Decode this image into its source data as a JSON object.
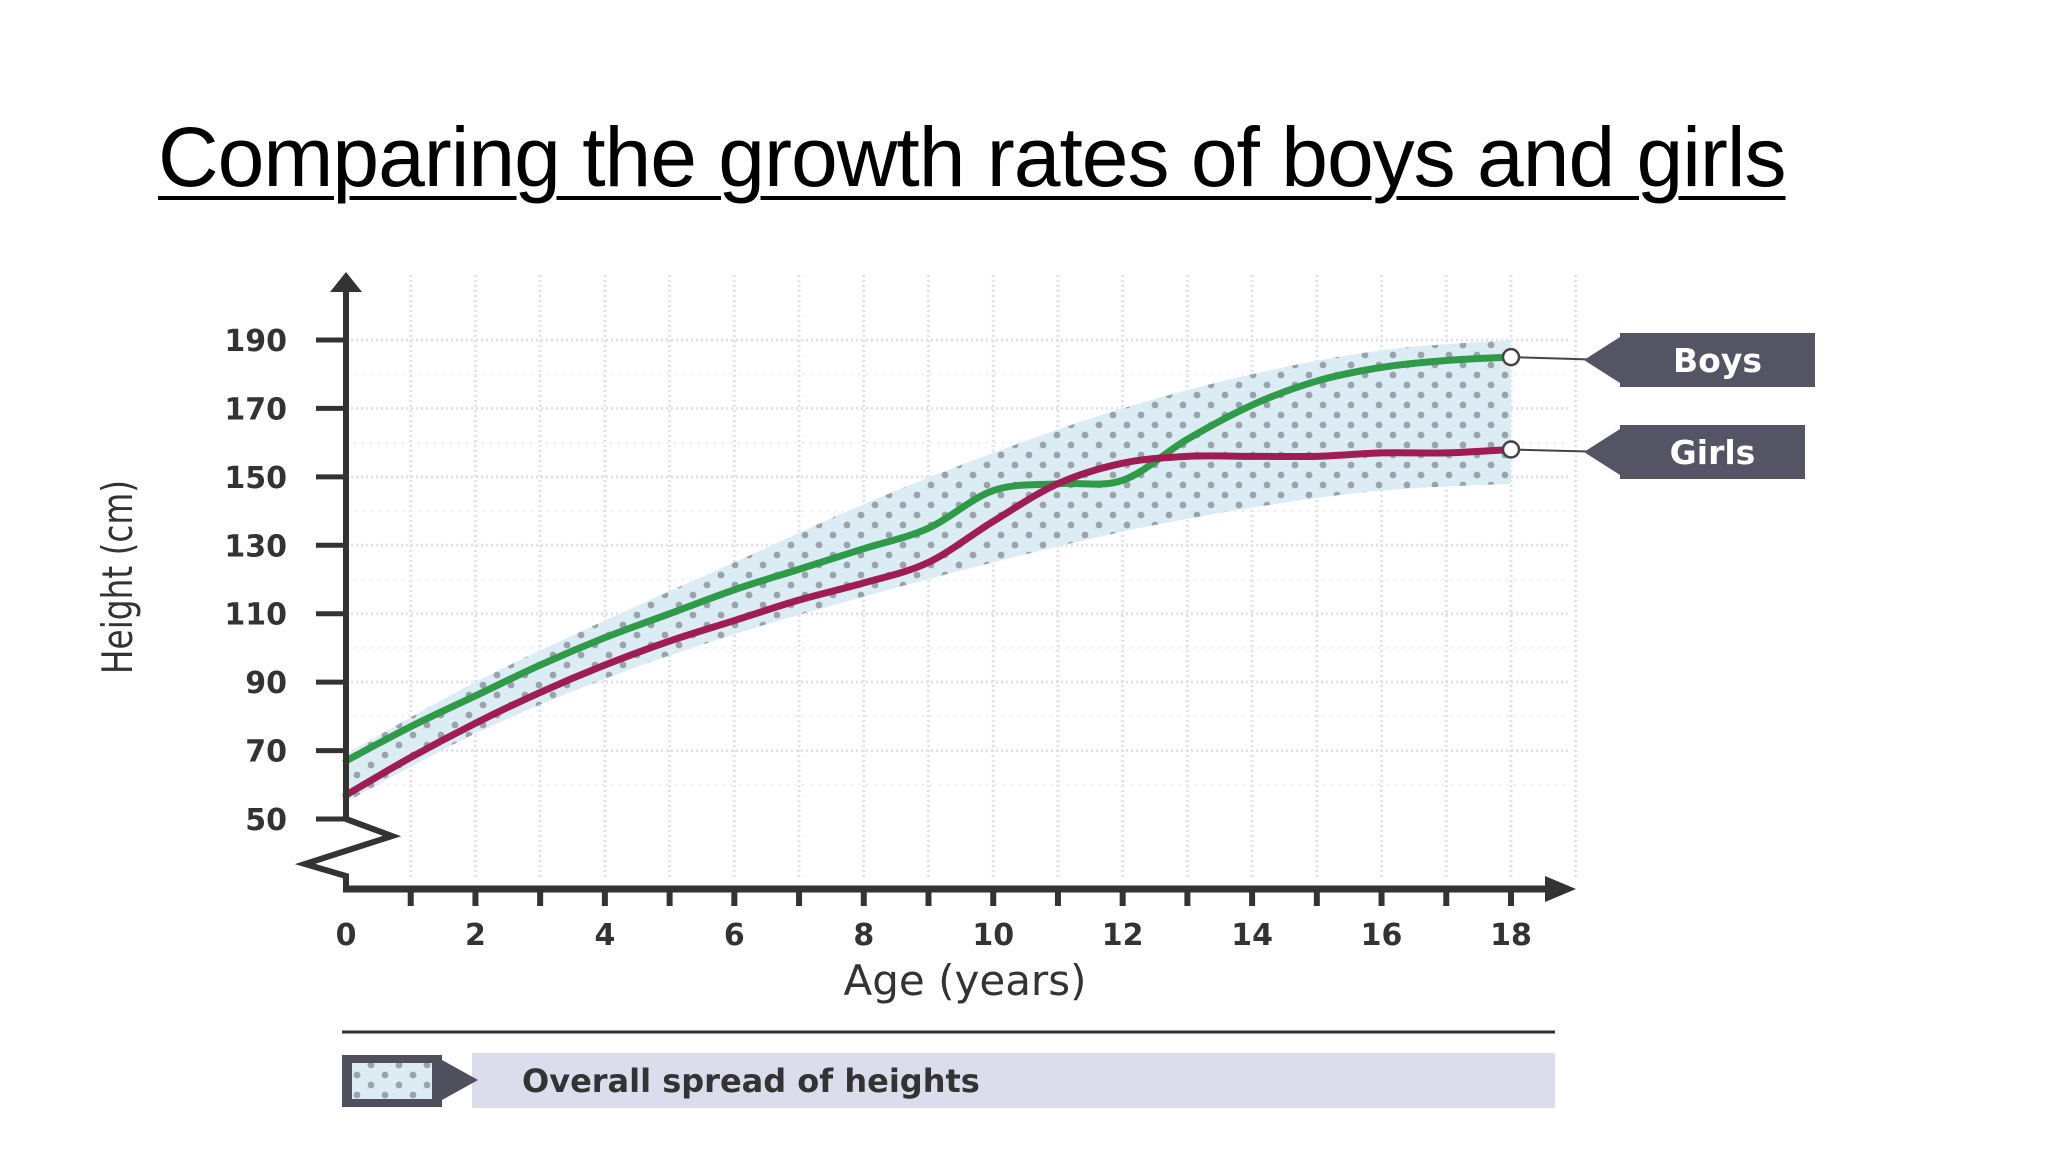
{
  "title": "Comparing the growth rates of boys and girls",
  "chart_data": {
    "type": "line",
    "xlabel": "Age (years)",
    "ylabel": "Height (cm)",
    "xlim": [
      0,
      18
    ],
    "ylim": [
      50,
      190
    ],
    "xticks": [
      "0",
      "2",
      "4",
      "6",
      "8",
      "10",
      "12",
      "14",
      "16",
      "18"
    ],
    "yticks": [
      "50",
      "70",
      "90",
      "110",
      "130",
      "150",
      "170",
      "190"
    ],
    "grid": true,
    "y_axis_break": true,
    "series": [
      {
        "name": "Boys",
        "color": "#2f9a47",
        "x": [
          0,
          1,
          2,
          3,
          4,
          5,
          6,
          7,
          8,
          9,
          10,
          11,
          12,
          13,
          14,
          15,
          16,
          17,
          18
        ],
        "y": [
          67,
          77,
          86,
          95,
          103,
          110,
          117,
          123,
          129,
          135,
          146,
          148,
          149,
          161,
          171,
          178,
          182,
          184,
          185
        ]
      },
      {
        "name": "Girls",
        "color": "#a01d54",
        "x": [
          0,
          1,
          2,
          3,
          4,
          5,
          6,
          7,
          8,
          9,
          10,
          11,
          12,
          13,
          14,
          15,
          16,
          17,
          18
        ],
        "y": [
          57,
          68,
          78,
          87,
          95,
          102,
          108,
          114,
          119,
          125,
          137,
          148,
          154,
          156,
          156,
          156,
          157,
          157,
          158
        ]
      }
    ],
    "spread": {
      "label": "Overall spread of heights",
      "fill_color": "#dcecf5",
      "dot_color": "#9aa3aa",
      "x": [
        0,
        2,
        4,
        6,
        8,
        10,
        12,
        14,
        16,
        18
      ],
      "upper": [
        69,
        90,
        108,
        125,
        142,
        157,
        170,
        180,
        187,
        190
      ],
      "lower": [
        55,
        75,
        91,
        104,
        115,
        125,
        134,
        141,
        146,
        148
      ]
    }
  }
}
